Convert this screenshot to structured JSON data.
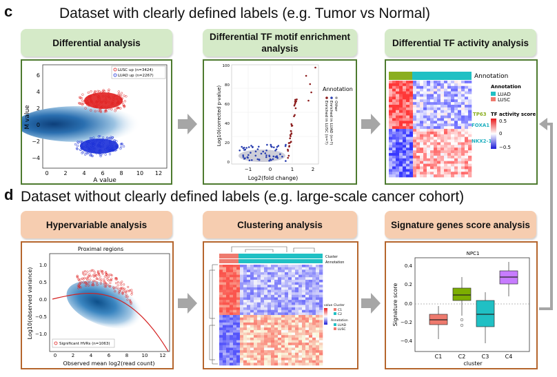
{
  "panel_c": {
    "letter": "c",
    "title": "Dataset with clearly defined labels (e.g. Tumor vs Normal)",
    "boxes": [
      {
        "label": "Differential analysis"
      },
      {
        "label": "Differential TF motif enrichment analysis"
      },
      {
        "label": "Differential TF activity analysis"
      }
    ],
    "ma_plot": {
      "ylabel": "M value",
      "xlabel": "A value",
      "legend": [
        "LUSC up (n=3424)",
        "LUAD up (n=2267)"
      ],
      "xticks": [
        "0",
        "2",
        "4",
        "6",
        "8",
        "10",
        "12"
      ],
      "yticks": [
        "6",
        "4",
        "2",
        "0",
        "−2",
        "−4"
      ]
    },
    "volcano": {
      "ylabel": "Log10(corrected p-value)",
      "xlabel": "Log2(fold change)",
      "legend_title": "Annotation",
      "legend": [
        "Enriched in LUSC (n=?)",
        "Enriched in LUAD (n=?)",
        "Other"
      ],
      "xticks": [
        "−1",
        "0",
        "1",
        "2"
      ],
      "yticks": [
        "100",
        "80",
        "60",
        "40",
        "20",
        "0"
      ]
    },
    "tf_heatmap": {
      "annotation_label": "Annotation",
      "legend_title": "Annotation",
      "legend": [
        "LUAD",
        "LUSC"
      ],
      "score_title": "TF activity score",
      "score_ticks": [
        "0.5",
        "0",
        "−0.5"
      ],
      "tf_labels": [
        "TP63",
        "FOXA1",
        "NKX2-1"
      ],
      "colors": {
        "luad": "#20c0c4",
        "lusc": "#ee7a6e",
        "tp63": "#8aae1f",
        "foxa": "#20b0c0"
      }
    }
  },
  "panel_d": {
    "letter": "d",
    "title": "Dataset without clearly defined labels (e.g. large-scale cancer cohort)",
    "boxes": [
      {
        "label": "Hypervariable analysis"
      },
      {
        "label": "Clustering analysis"
      },
      {
        "label": "Signature genes score analysis"
      }
    ],
    "hvr_plot": {
      "title": "Proximal regions",
      "ylabel": "Log10(observed variance)",
      "xlabel": "Observed mean log2(read count)",
      "legend": "Significant HVRs (n=1063)",
      "xticks": [
        "0",
        "2",
        "4",
        "6",
        "8",
        "10",
        "12"
      ],
      "yticks": [
        "1.0",
        "0.5",
        "0.0",
        "−0.5",
        "−1.0"
      ]
    },
    "cluster_heatmap": {
      "legend_labels": [
        "Cluster",
        "Annotation"
      ],
      "value_title": "value",
      "cluster_title": "Cluster",
      "cluster_entries": [
        "C1",
        "C2"
      ],
      "annotation_title": "Annotation",
      "annotation_entries": [
        "LUAD",
        "LUSC"
      ]
    },
    "boxplot": {
      "title": "NPC1",
      "ylabel": "Signature score",
      "xlabel": "cluster",
      "categories": [
        "C1",
        "C2",
        "C3",
        "C4"
      ],
      "yticks": [
        "0.4",
        "0.2",
        "0.0",
        "−0.2",
        "−0.4"
      ]
    }
  }
}
